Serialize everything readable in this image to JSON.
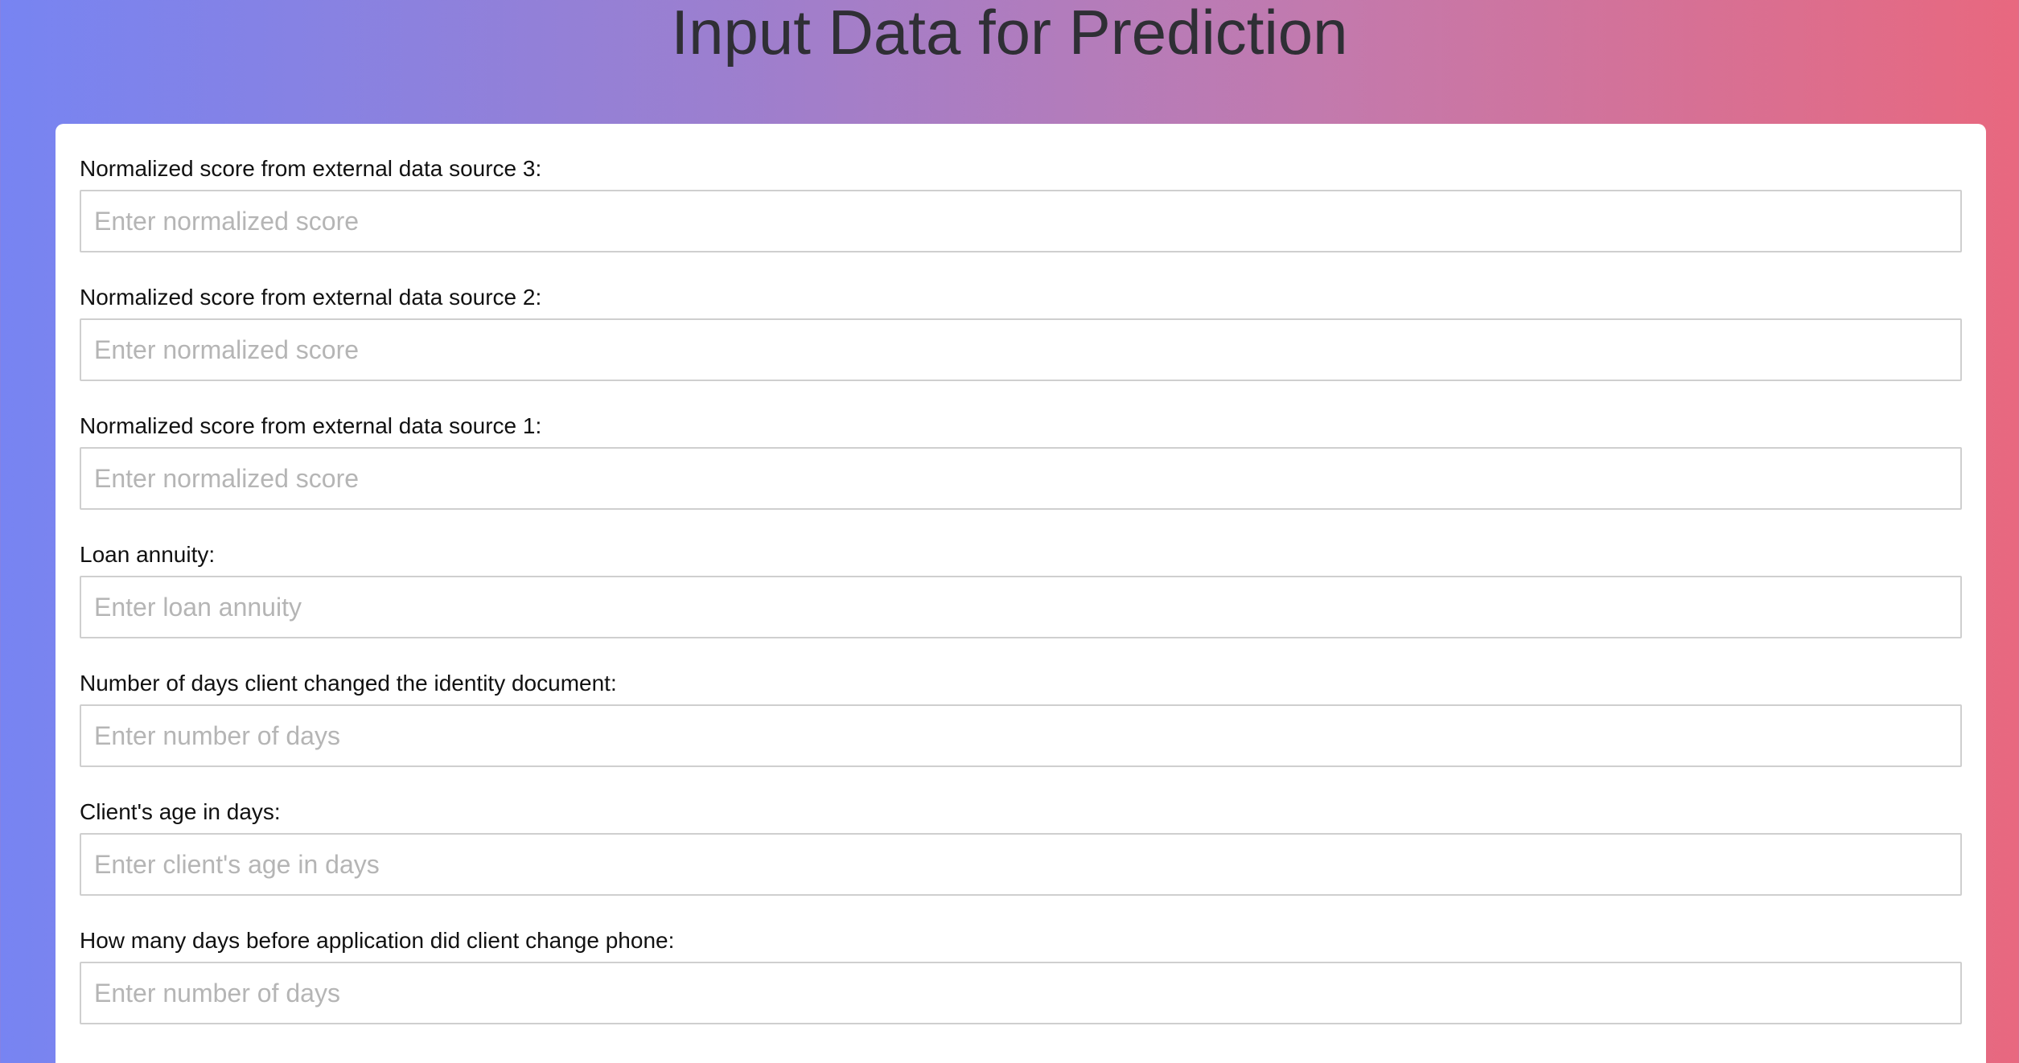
{
  "page": {
    "title": "Input Data for Prediction"
  },
  "form": {
    "fields": [
      {
        "label": "Normalized score from external data source 3:",
        "placeholder": "Enter normalized score",
        "value": ""
      },
      {
        "label": "Normalized score from external data source 2:",
        "placeholder": "Enter normalized score",
        "value": ""
      },
      {
        "label": "Normalized score from external data source 1:",
        "placeholder": "Enter normalized score",
        "value": ""
      },
      {
        "label": "Loan annuity:",
        "placeholder": "Enter loan annuity",
        "value": ""
      },
      {
        "label": "Number of days client changed the identity document:",
        "placeholder": "Enter number of days",
        "value": ""
      },
      {
        "label": "Client's age in days:",
        "placeholder": "Enter client's age in days",
        "value": ""
      },
      {
        "label": "How many days before application did client change phone:",
        "placeholder": "Enter number of days",
        "value": ""
      }
    ]
  },
  "colors": {
    "gradient_start": "#7784f2",
    "gradient_end": "#e8687f",
    "card_background": "#ffffff",
    "input_border": "#cfcfcf",
    "placeholder": "#b5b5b5",
    "title_text": "#2f2f35"
  }
}
